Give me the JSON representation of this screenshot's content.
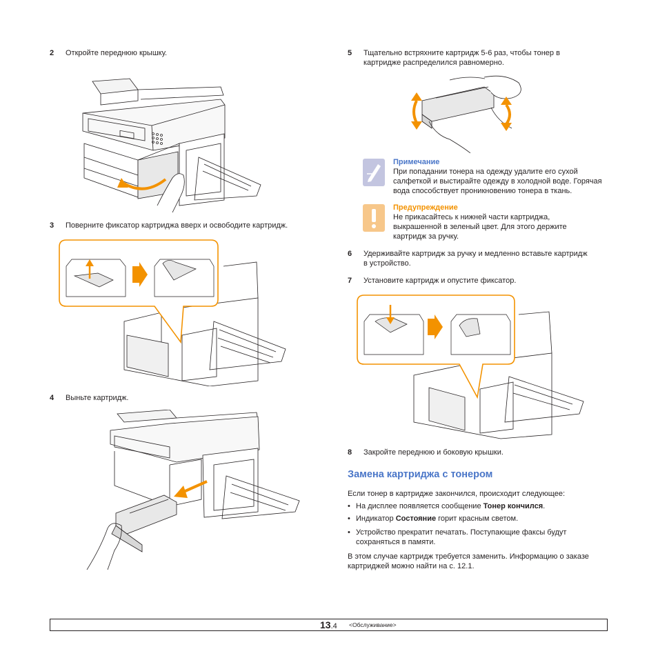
{
  "steps": {
    "s2": {
      "num": "2",
      "text": "Откройте переднюю крышку."
    },
    "s3": {
      "num": "3",
      "text": "Поверните фиксатор картриджа вверх и освободите картридж."
    },
    "s4": {
      "num": "4",
      "text": "Выньте картридж."
    },
    "s5": {
      "num": "5",
      "line1": "Тщательно встряхните картридж 5-6 раз, чтобы тонер в",
      "line2": "картридже распределился равномерно."
    },
    "s6": {
      "num": "6",
      "line1": "Удерживайте картридж за ручку и медленно вставьте картридж",
      "line2": "в устройство."
    },
    "s7": {
      "num": "7",
      "text": "Установите картридж и опустите фиксатор."
    },
    "s8": {
      "num": "8",
      "text": "Закройте переднюю и боковую крышки."
    }
  },
  "note": {
    "title": "Примечание",
    "line1": "При попадании тонера на одежду удалите его сухой",
    "line2": "салфеткой и выстирайте одежду в холодной воде. Горячая",
    "line3": "вода способствует проникновению тонера в ткань.",
    "icon": "note-pencil-icon",
    "color": "#4a76c8"
  },
  "warning": {
    "title": "Предупреждение",
    "line1": "Не прикасайтесь к нижней части картриджа,",
    "line2": "выкрашенной в зеленый цвет. Для этого держите",
    "line3": "картридж за ручку.",
    "icon": "warning-exclamation-icon",
    "color": "#f39200"
  },
  "section": {
    "heading": "Замена картриджа с тонером",
    "intro": "Если тонер в картридже закончился, происходит следующее:",
    "bullets": [
      {
        "pre": "На дисплее появляется сообщение ",
        "bold": "Тонер кончился",
        "post": "."
      },
      {
        "pre": "Индикатор ",
        "bold": "Состояние",
        "post": " горит красным светом."
      },
      {
        "line1": "Устройство прекратит печатать. Поступающие факсы будут",
        "line2": "сохраняться в памяти."
      }
    ],
    "outro1": "В этом случае картридж требуется заменить. Информацию о заказе",
    "outro2": "картриджей можно найти на с. 12.1."
  },
  "footer": {
    "page_major": "13",
    "page_minor": ".4",
    "section": "<Обслуживание>"
  },
  "colors": {
    "accent_orange": "#f39200",
    "accent_blue": "#4a76c8"
  }
}
